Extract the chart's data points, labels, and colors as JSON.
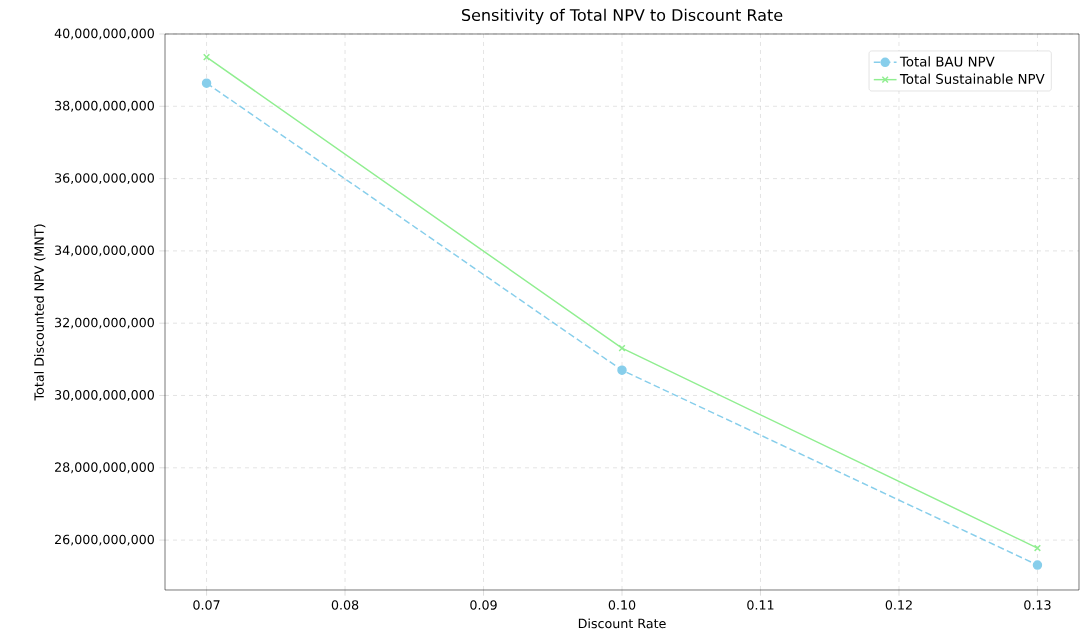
{
  "chart_data": {
    "type": "line",
    "title": "Sensitivity of Total NPV to Discount Rate",
    "xlabel": "Discount Rate",
    "ylabel": "Total Discounted NPV (MNT)",
    "x": [
      0.07,
      0.1,
      0.13
    ],
    "series": [
      {
        "name": "Total BAU NPV",
        "color": "#87ceeb",
        "marker": "circle",
        "line_style": "dashed",
        "values": [
          38640000000,
          30700000000,
          25310000000
        ]
      },
      {
        "name": "Total Sustainable NPV",
        "color": "#90ee90",
        "marker": "cross",
        "line_style": "solid",
        "values": [
          39360000000,
          31310000000,
          25780000000
        ]
      }
    ],
    "xlim": [
      0.067,
      0.133
    ],
    "xticks": [
      {
        "value": 0.07,
        "label": "0.07"
      },
      0.08,
      0.09,
      {
        "value": 0.1,
        "label": "0.10"
      },
      0.11,
      0.12,
      0.13
    ],
    "ylim": [
      24620000000,
      40000000000
    ],
    "yticks": [
      {
        "value": 26000000000,
        "label": "26,000,000,000"
      },
      {
        "value": 28000000000,
        "label": "28,000,000,000"
      },
      {
        "value": 30000000000,
        "label": "30,000,000,000"
      },
      {
        "value": 32000000000,
        "label": "32,000,000,000"
      },
      {
        "value": 34000000000,
        "label": "34,000,000,000"
      },
      {
        "value": 36000000000,
        "label": "36,000,000,000"
      },
      {
        "value": 38000000000,
        "label": "38,000,000,000"
      },
      {
        "value": 40000000000,
        "label": "40,000,000,000"
      }
    ],
    "grid": true,
    "legend": "top right"
  }
}
